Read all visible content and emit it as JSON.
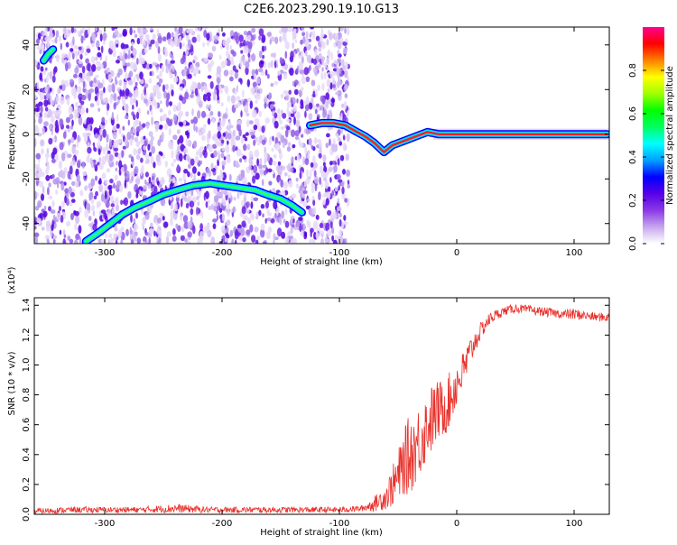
{
  "figure": {
    "title": "C2E6.2023.290.19.10.G13"
  },
  "chart_data": [
    {
      "type": "heatmap",
      "xlabel": "Height of straight line (km)",
      "ylabel": "Frequency (Hz)",
      "xlim": [
        -360,
        130
      ],
      "ylim": [
        -49,
        48
      ],
      "xticks": [
        -300,
        -200,
        -100,
        0,
        100
      ],
      "yticks": [
        -40,
        -20,
        0,
        20,
        40
      ],
      "colorbar": {
        "label": "Normalized spectral amplitude",
        "range": [
          0,
          1
        ],
        "ticks": [
          0,
          0.2,
          0.4,
          0.6,
          0.8
        ],
        "colors": [
          "#ffffff",
          "#c6a6ee",
          "#8a3ae6",
          "#5800e8",
          "#0000ff",
          "#00a0ff",
          "#00ffff",
          "#00ff60",
          "#00ff00",
          "#a0ff00",
          "#ffff00",
          "#ff8000",
          "#ff0000",
          "#ff0090"
        ]
      },
      "traces": [
        {
          "name": "",
          "points": [
            [
              -316,
              -48
            ],
            [
              -305,
              -44
            ],
            [
              -295,
              -40
            ],
            [
              -285,
              -36
            ],
            [
              -275,
              -33
            ],
            [
              -262,
              -30
            ],
            [
              -250,
              -27
            ],
            [
              -238,
              -25
            ],
            [
              -225,
              -23
            ],
            [
              -210,
              -22
            ],
            [
              -198,
              -23
            ],
            [
              -185,
              -24
            ],
            [
              -172,
              -25
            ],
            [
              -162,
              -27
            ],
            [
              -150,
              -29
            ],
            [
              -140,
              -32
            ],
            [
              -132,
              -35
            ]
          ]
        },
        {
          "name": "",
          "points": [
            [
              -352,
              33
            ],
            [
              -348,
              36
            ],
            [
              -344,
              38
            ]
          ]
        },
        {
          "name": "",
          "points": [
            [
              -125,
              4
            ],
            [
              -115,
              5
            ],
            [
              -105,
              5
            ],
            [
              -95,
              4
            ],
            [
              -85,
              1
            ],
            [
              -78,
              -1
            ],
            [
              -70,
              -4
            ],
            [
              -62,
              -8
            ],
            [
              -55,
              -5
            ],
            [
              -45,
              -3
            ],
            [
              -35,
              -1
            ],
            [
              -25,
              1
            ],
            [
              -15,
              0
            ],
            [
              -5,
              0
            ],
            [
              10,
              0
            ],
            [
              40,
              0
            ],
            [
              80,
              0
            ],
            [
              128,
              0
            ]
          ]
        }
      ]
    },
    {
      "type": "line",
      "xlabel": "Height of straight line (km)",
      "ylabel": "SNR (10 * v/v)",
      "scale_label": "(x10⁴)",
      "xlim": [
        -360,
        130
      ],
      "ylim": [
        0,
        1.45
      ],
      "xticks": [
        -300,
        -200,
        -100,
        0,
        100
      ],
      "yticks": [
        0.0,
        0.2,
        0.4,
        0.6,
        0.8,
        1.0,
        1.2,
        1.4
      ],
      "color": "#e8302a",
      "series": [
        {
          "name": "",
          "x": [
            -360,
            -330,
            -300,
            -270,
            -240,
            -210,
            -180,
            -150,
            -120,
            -100,
            -80,
            -70,
            -60,
            -50,
            -45,
            -40,
            -35,
            -30,
            -25,
            -20,
            -15,
            -10,
            -5,
            0,
            5,
            10,
            15,
            20,
            25,
            30,
            40,
            50,
            60,
            70,
            80,
            90,
            100,
            110,
            120,
            130
          ],
          "values": [
            0.02,
            0.03,
            0.03,
            0.03,
            0.04,
            0.03,
            0.03,
            0.03,
            0.03,
            0.03,
            0.04,
            0.07,
            0.12,
            0.25,
            0.35,
            0.4,
            0.45,
            0.52,
            0.6,
            0.65,
            0.7,
            0.72,
            0.78,
            0.88,
            0.95,
            1.05,
            1.15,
            1.22,
            1.28,
            1.32,
            1.36,
            1.38,
            1.37,
            1.36,
            1.35,
            1.34,
            1.34,
            1.33,
            1.32,
            1.32
          ],
          "noise": [
            0.02,
            0.02,
            0.02,
            0.02,
            0.03,
            0.02,
            0.02,
            0.02,
            0.02,
            0.02,
            0.02,
            0.05,
            0.09,
            0.18,
            0.22,
            0.28,
            0.24,
            0.26,
            0.22,
            0.24,
            0.2,
            0.2,
            0.18,
            0.16,
            0.14,
            0.12,
            0.08,
            0.06,
            0.05,
            0.04,
            0.03,
            0.03,
            0.03,
            0.03,
            0.03,
            0.03,
            0.04,
            0.03,
            0.03,
            0.03
          ]
        }
      ]
    }
  ]
}
